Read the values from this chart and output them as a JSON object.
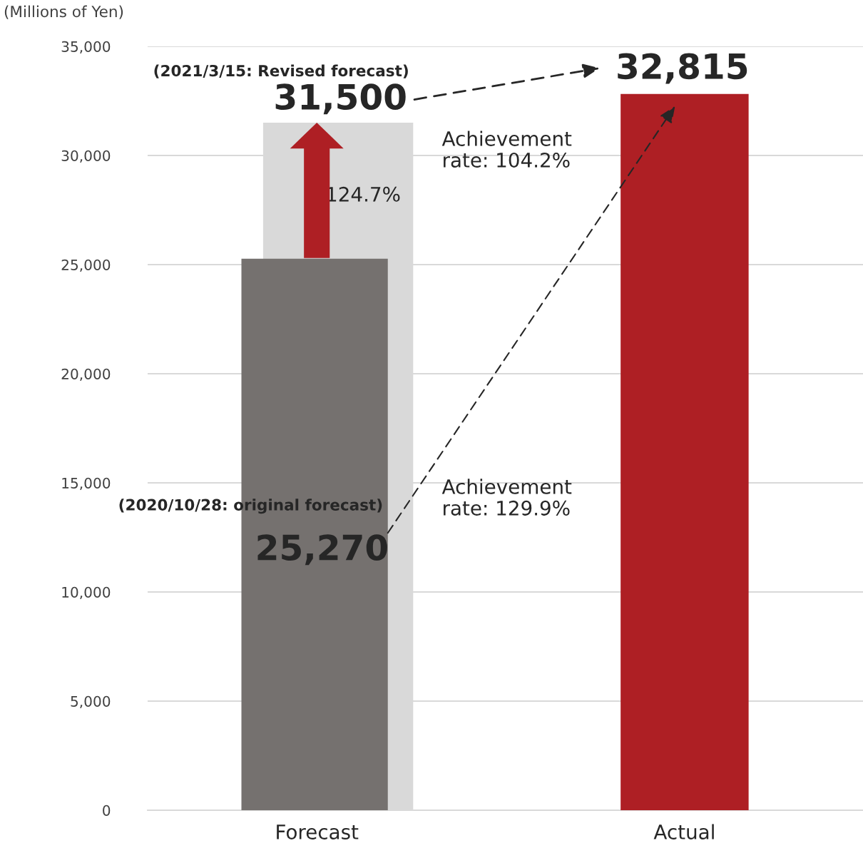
{
  "chart_data": {
    "type": "bar",
    "ylabel": "(Millions of Yen)",
    "categories": [
      "Forecast",
      "Actual"
    ],
    "series": [
      {
        "color": "#d9d9d9",
        "values": [
          31500,
          null
        ],
        "value_labels": [
          "31,500",
          null
        ]
      },
      {
        "color": "#75716f",
        "values": [
          25270,
          null
        ],
        "value_labels": [
          "25,270",
          null
        ]
      },
      {
        "color": "#ae1f24",
        "values": [
          null,
          32815
        ],
        "value_labels": [
          null,
          "32,815"
        ]
      }
    ],
    "ylim": [
      0,
      35000
    ],
    "yticks": [
      0,
      {
        "value": 5000,
        "label": "5,000"
      },
      {
        "value": 10000,
        "label": "10,000"
      },
      {
        "value": 15000,
        "label": "15,000"
      },
      {
        "value": 20000,
        "label": "20,000"
      },
      {
        "value": 25000,
        "label": "25,000"
      },
      {
        "value": 30000,
        "label": "30,000"
      },
      {
        "value": 35000,
        "label": "35,000"
      }
    ],
    "grid": "y",
    "annotations": [
      "(2021/3/15: Revised forecast)",
      "(2020/10/28: original forecast)",
      "124.7%",
      "Achievement\nrate: 104.2%",
      "Achievement\nrate: 129.9%"
    ]
  }
}
